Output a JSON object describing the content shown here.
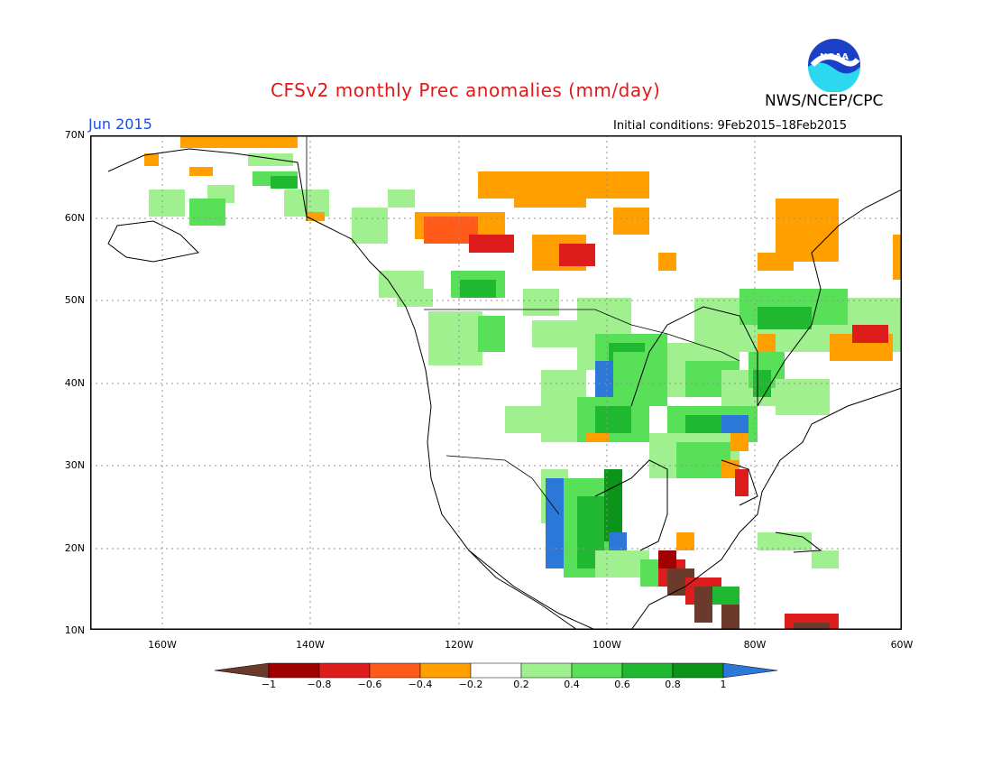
{
  "header": {
    "title": "CFSv2 monthly Prec anomalies (mm/day)",
    "org": "NWS/NCEP/CPC",
    "month": "Jun 2015",
    "initial_conditions": "Initial conditions: 9Feb2015–18Feb2015",
    "logo_text": "NOAA"
  },
  "map": {
    "lat_labels": [
      "70N",
      "60N",
      "50N",
      "40N",
      "30N",
      "20N",
      "10N"
    ],
    "lon_labels": [
      "160W",
      "140W",
      "120W",
      "100W",
      "80W",
      "60W"
    ],
    "colors": {
      "land_line": "#000000",
      "grid": "#808080"
    }
  },
  "colorbar": {
    "labels": [
      "−1",
      "−0.8",
      "−0.6",
      "−0.4",
      "−0.2",
      "0.2",
      "0.4",
      "0.6",
      "0.8",
      "1"
    ],
    "colors": [
      "#6b3a2a",
      "#a00000",
      "#dd1c1c",
      "#ff5a1a",
      "#ffa000",
      "#ffffff",
      "#a0f090",
      "#58e058",
      "#20b830",
      "#0c9418",
      "#2c78d8"
    ]
  }
}
